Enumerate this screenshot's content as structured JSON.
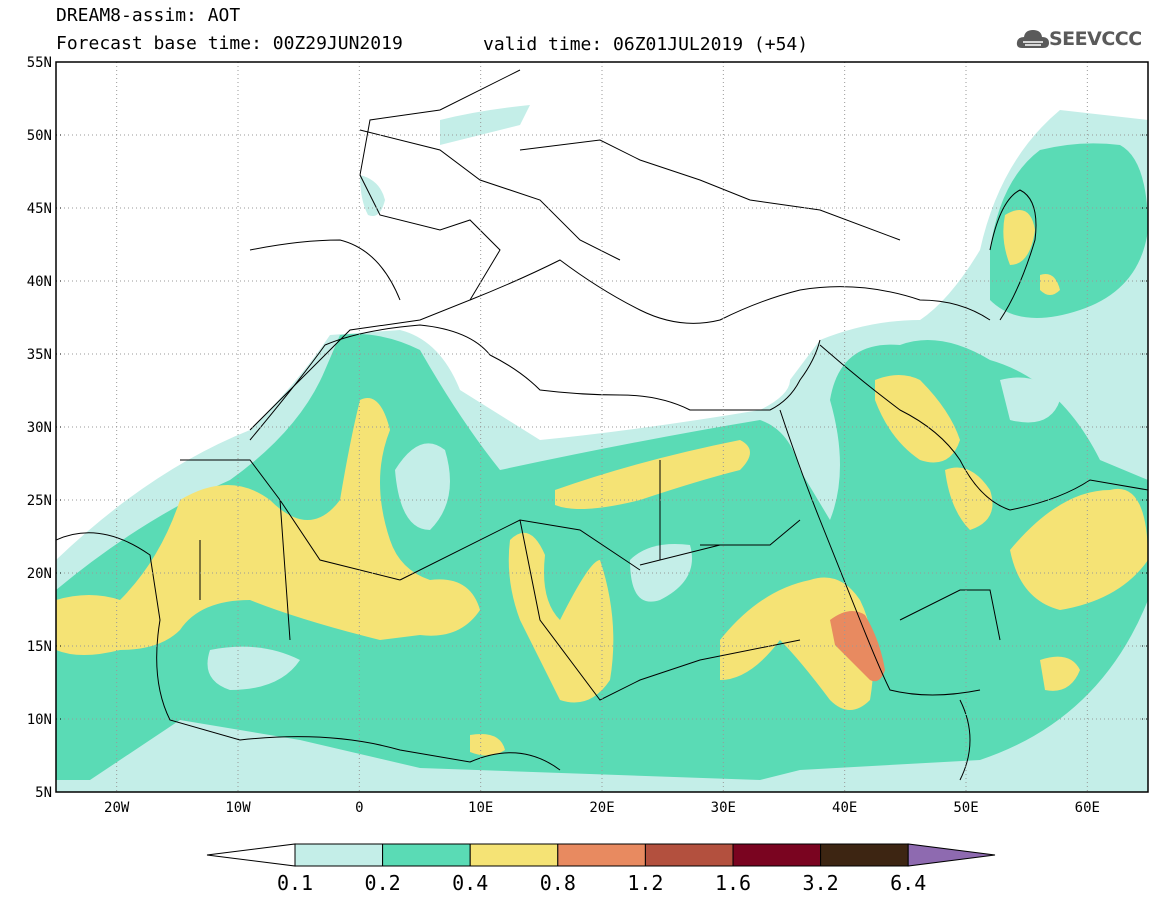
{
  "header": {
    "title": "DREAM8-assim: AOT",
    "base_time": "Forecast base time: 00Z29JUN2019",
    "valid_time": "valid time: 06Z01JUL2019 (+54)"
  },
  "logo": {
    "text": "SEEVCCC",
    "icon": "cloud-icon"
  },
  "map": {
    "lat_labels": [
      "55N",
      "50N",
      "45N",
      "40N",
      "35N",
      "30N",
      "25N",
      "20N",
      "15N",
      "10N",
      "5N"
    ],
    "lon_labels": [
      "20W",
      "10W",
      "0",
      "10E",
      "20E",
      "30E",
      "40E",
      "50E",
      "60E"
    ],
    "lon_range": [
      -25,
      65
    ],
    "lat_range": [
      5,
      55
    ]
  },
  "colorbar": {
    "labels": [
      "0.1",
      "0.2",
      "0.4",
      "0.8",
      "1.2",
      "1.6",
      "3.2",
      "6.4"
    ],
    "colors": [
      "#ffffff",
      "#c4eee8",
      "#5adbb5",
      "#f5e375",
      "#e88a60",
      "#b3503e",
      "#7a0420",
      "#3d2512",
      "#8e6ab0"
    ]
  }
}
